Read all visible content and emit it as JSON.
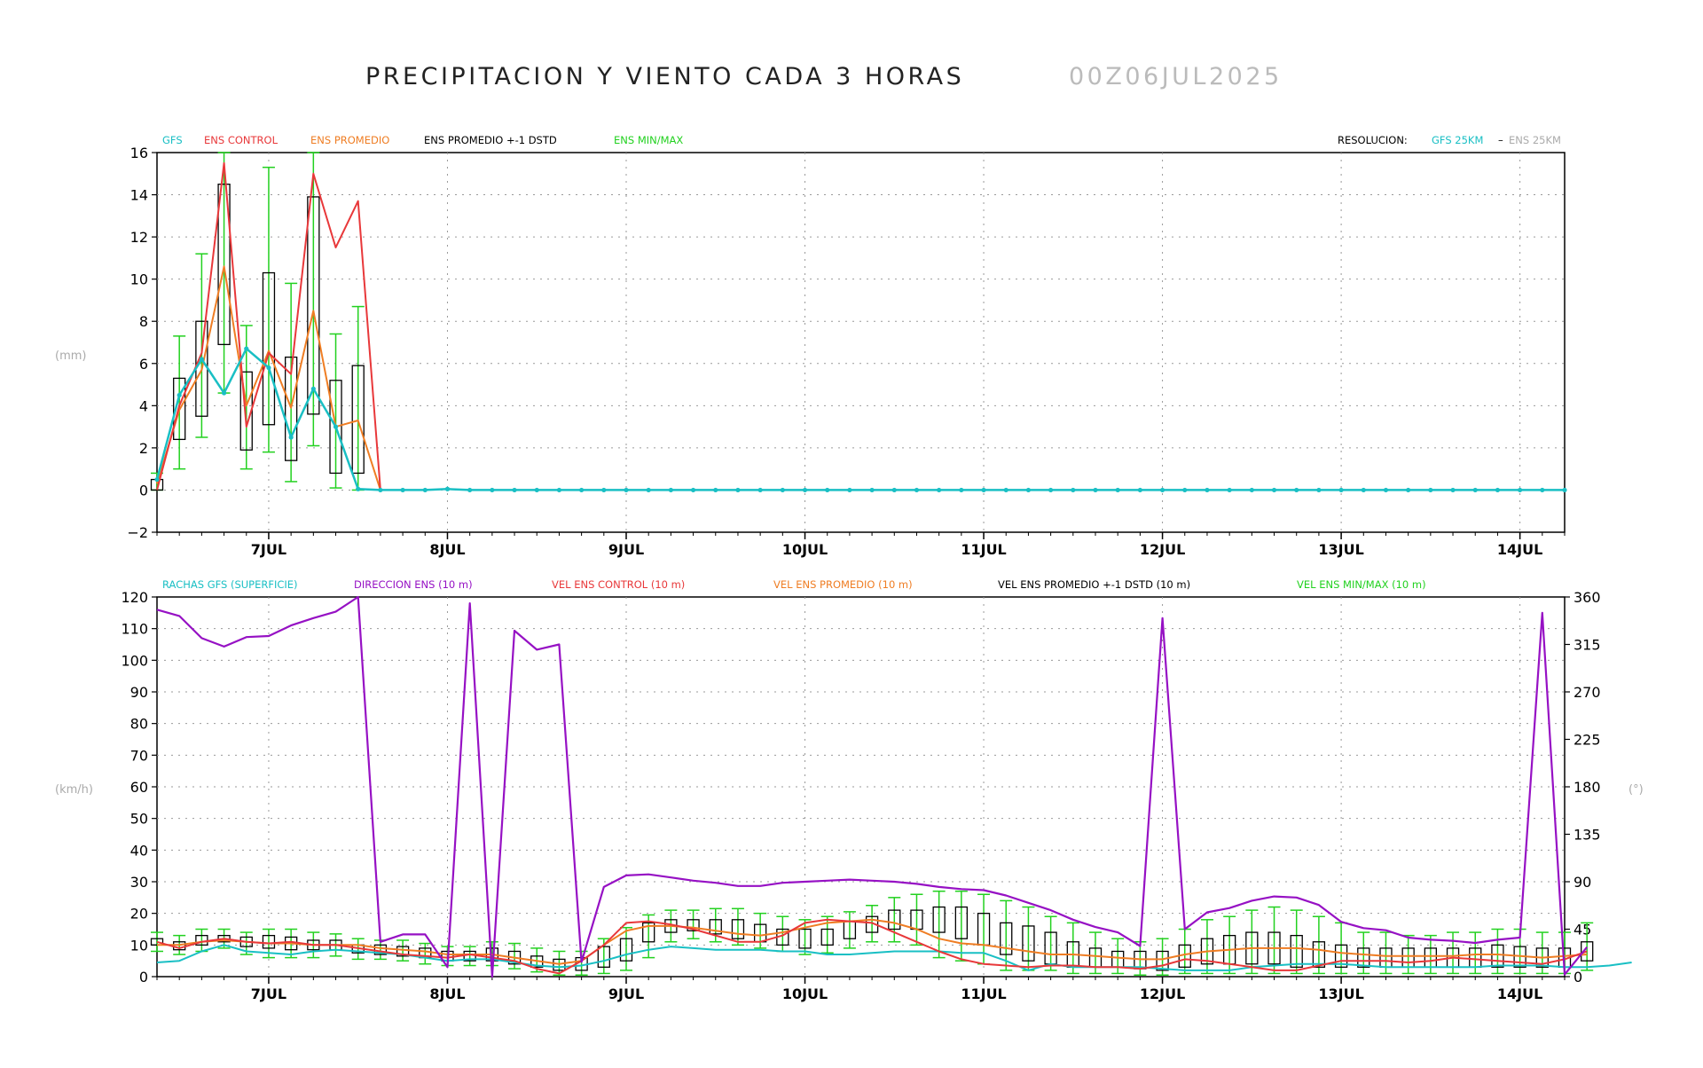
{
  "header": {
    "title": "PRECIPITACION Y VIENTO CADA 3 HORAS",
    "run": "00Z06JUL2025"
  },
  "colors": {
    "gfs": "#19bfc4",
    "control": "#e8383a",
    "promedio": "#ef7d23",
    "std": "#000000",
    "minmax": "#22d11f",
    "direction": "#9611c4",
    "grey": "#aaaaaa",
    "grid": "#999999"
  },
  "x_labels": [
    "7JUL",
    "8JUL",
    "9JUL",
    "10JUL",
    "11JUL",
    "12JUL",
    "13JUL",
    "14JUL"
  ],
  "chart_data": [
    {
      "type": "line",
      "title": "PRECIPITACION Y VIENTO CADA 3 HORAS",
      "ylabel": "(mm)",
      "ylim": [
        -2,
        16
      ],
      "yticks": [
        -2,
        0,
        2,
        4,
        6,
        8,
        10,
        12,
        14,
        16
      ],
      "x_labels": [
        "7JUL",
        "8JUL",
        "9JUL",
        "10JUL",
        "11JUL",
        "12JUL",
        "13JUL",
        "14JUL"
      ],
      "x_step_hours": 3,
      "legend": {
        "items": [
          "GFS",
          "ENS CONTROL",
          "ENS PROMEDIO",
          "ENS PROMEDIO +-1 DSTD",
          "ENS MIN/MAX"
        ],
        "resolution_label": "RESOLUCION:",
        "resolution_gfs": "GFS 25KM",
        "resolution_sep": "–",
        "resolution_ens": "ENS 25KM"
      },
      "series": [
        {
          "name": "GFS",
          "values": [
            0.5,
            4.5,
            6.2,
            4.6,
            6.7,
            5.8,
            2.5,
            4.8,
            3.0,
            0.05,
            0,
            0,
            0,
            0.05
          ]
        },
        {
          "name": "ENS CONTROL",
          "values": [
            0,
            4.0,
            6.5,
            15.5,
            3.0,
            6.5,
            5.5,
            15.0,
            11.5,
            13.7,
            0
          ]
        },
        {
          "name": "ENS PROMEDIO",
          "values": [
            0.3,
            3.8,
            5.7,
            10.6,
            4.0,
            6.6,
            3.9,
            8.5,
            3.0,
            3.3,
            0
          ]
        }
      ],
      "boxes": [
        {
          "low": 0,
          "high": 0.5,
          "min": 0,
          "max": 0.8
        },
        {
          "low": 2.4,
          "high": 5.3,
          "min": 1.0,
          "max": 7.3
        },
        {
          "low": 3.5,
          "high": 8.0,
          "min": 2.5,
          "max": 11.2
        },
        {
          "low": 6.9,
          "high": 14.5,
          "min": 4.6,
          "max": 16.0
        },
        {
          "low": 1.9,
          "high": 5.6,
          "min": 1.0,
          "max": 7.8
        },
        {
          "low": 3.1,
          "high": 10.3,
          "min": 1.8,
          "max": 15.3
        },
        {
          "low": 1.4,
          "high": 6.3,
          "min": 0.4,
          "max": 9.8
        },
        {
          "low": 3.6,
          "high": 13.9,
          "min": 2.1,
          "max": 16.0
        },
        {
          "low": 0.8,
          "high": 5.2,
          "min": 0.1,
          "max": 7.4
        },
        {
          "low": 0.8,
          "high": 5.9,
          "min": 0.0,
          "max": 8.7
        }
      ]
    },
    {
      "type": "line",
      "ylabel": "(km/h)",
      "y2label": "(°)",
      "ylim": [
        0,
        120
      ],
      "y2lim": [
        0,
        360
      ],
      "yticks": [
        0,
        10,
        20,
        30,
        40,
        50,
        60,
        70,
        80,
        90,
        100,
        110,
        120
      ],
      "y2ticks": [
        0,
        45,
        90,
        135,
        180,
        225,
        270,
        315,
        360
      ],
      "x_labels": [
        "7JUL",
        "8JUL",
        "9JUL",
        "10JUL",
        "11JUL",
        "12JUL",
        "13JUL",
        "14JUL"
      ],
      "x_step_hours": 3,
      "legend": {
        "items": [
          "RACHAS GFS (SUPERFICIE)",
          "DIRECCION ENS (10 m)",
          "VEL ENS CONTROL (10 m)",
          "VEL ENS PROMEDIO (10 m)",
          "VEL ENS PROMEDIO +-1 DSTD (10 m)",
          "VEL ENS MIN/MAX (10 m)"
        ]
      },
      "series": [
        {
          "name": "RACHAS GFS (SUPERFICIE)",
          "values": [
            4.5,
            5,
            8,
            10,
            8,
            7.5,
            7,
            8,
            8.5,
            8,
            7.5,
            7,
            6,
            5,
            5.5,
            5.5,
            4.5,
            3.5,
            3,
            3.5,
            5,
            7,
            8.5,
            9.5,
            9,
            8.5,
            8.5,
            8.5,
            8,
            8,
            7,
            7,
            7.5,
            8,
            8,
            8,
            7.5,
            7.5,
            5,
            2,
            4,
            3,
            3,
            3,
            3,
            2.5,
            2,
            2,
            2,
            3,
            3.5,
            4,
            4,
            4,
            3.5,
            3,
            3,
            3,
            3,
            3,
            3.5,
            3.5,
            3.5,
            3,
            3,
            3.5,
            4.5
          ]
        },
        {
          "name": "DIRECCION ENS (10 m)",
          "values": [
            348,
            342,
            321,
            313,
            322,
            323,
            333,
            340,
            346,
            360,
            33,
            40,
            40,
            9,
            354,
            0,
            328,
            310,
            315,
            14,
            85,
            96,
            97,
            94,
            91,
            89,
            86,
            86,
            89,
            90,
            91,
            92,
            91,
            90,
            88,
            85,
            83,
            82,
            77,
            70,
            63,
            54,
            47,
            42,
            29,
            340,
            45,
            61,
            65,
            72,
            76,
            75,
            68,
            52,
            46,
            44,
            37,
            35,
            34,
            32,
            35,
            37,
            345,
            2,
            28
          ]
        },
        {
          "name": "VEL ENS CONTROL (10 m)",
          "values": [
            11,
            9,
            11,
            12,
            11,
            10.5,
            11,
            10,
            10,
            9,
            8,
            7,
            6.5,
            6,
            7,
            6,
            5,
            2.5,
            1,
            5,
            10,
            17,
            17.5,
            16.5,
            15,
            13,
            11,
            11,
            13,
            17,
            18,
            17.5,
            17,
            14,
            11,
            8,
            5.5,
            4,
            3.5,
            3,
            3.5,
            3.5,
            3,
            3,
            2.5,
            3.5,
            5.5,
            5,
            4,
            3,
            2,
            2,
            3.5,
            5,
            5,
            5,
            4.5,
            5,
            6,
            5.5,
            5,
            4.5,
            4,
            5.5,
            8
          ]
        },
        {
          "name": "VEL ENS PROMEDIO (10 m)",
          "values": [
            10,
            10,
            11,
            11.5,
            11,
            10.5,
            10.5,
            10,
            10,
            10,
            9,
            8.5,
            8,
            7,
            7,
            7,
            6,
            5,
            4,
            5,
            10,
            14.5,
            16,
            16,
            15.5,
            14.5,
            13.5,
            13,
            14,
            15.5,
            17,
            17.5,
            18,
            17,
            15,
            12,
            10.5,
            10,
            9,
            8,
            7,
            7,
            6.5,
            6,
            5.5,
            5.5,
            7,
            8,
            8.5,
            9,
            9,
            9,
            8.5,
            7.5,
            7,
            6.5,
            6.5,
            6.5,
            6.5,
            7,
            7,
            6.5,
            6,
            6.5,
            7
          ]
        }
      ],
      "boxes": [
        {
          "low": 10,
          "high": 12,
          "min": 8,
          "max": 14
        },
        {
          "low": 8.5,
          "high": 11,
          "min": 7,
          "max": 13
        },
        {
          "low": 10,
          "high": 13,
          "min": 8,
          "max": 15
        },
        {
          "low": 11,
          "high": 13,
          "min": 9,
          "max": 15
        },
        {
          "low": 9.5,
          "high": 12.5,
          "min": 7,
          "max": 14
        },
        {
          "low": 9,
          "high": 13,
          "min": 6,
          "max": 15
        },
        {
          "low": 8.5,
          "high": 12.5,
          "min": 6,
          "max": 15
        },
        {
          "low": 8.5,
          "high": 11.5,
          "min": 6,
          "max": 14
        },
        {
          "low": 8.5,
          "high": 11.5,
          "min": 6.5,
          "max": 13.5
        },
        {
          "low": 7.5,
          "high": 10,
          "min": 5.5,
          "max": 12
        },
        {
          "low": 7,
          "high": 10,
          "min": 5.5,
          "max": 11.5
        },
        {
          "low": 6.5,
          "high": 9.5,
          "min": 5,
          "max": 11.5
        },
        {
          "low": 6,
          "high": 9,
          "min": 4,
          "max": 10.5
        },
        {
          "low": 5,
          "high": 8,
          "min": 3.5,
          "max": 9.5
        },
        {
          "low": 5,
          "high": 8,
          "min": 3.5,
          "max": 9.5
        },
        {
          "low": 5,
          "high": 9,
          "min": 3.5,
          "max": 11
        },
        {
          "low": 4,
          "high": 8,
          "min": 2.5,
          "max": 10.5
        },
        {
          "low": 3,
          "high": 6.5,
          "min": 1.5,
          "max": 9
        },
        {
          "low": 2,
          "high": 5.5,
          "min": 0.5,
          "max": 8
        },
        {
          "low": 2,
          "high": 6,
          "min": 0.5,
          "max": 8
        },
        {
          "low": 3,
          "high": 9.5,
          "min": 1,
          "max": 12
        },
        {
          "low": 5,
          "high": 12,
          "min": 2,
          "max": 15.5
        },
        {
          "low": 11,
          "high": 17,
          "min": 6,
          "max": 19.5
        },
        {
          "low": 14,
          "high": 18,
          "min": 11,
          "max": 21
        },
        {
          "low": 14.5,
          "high": 18,
          "min": 12,
          "max": 21
        },
        {
          "low": 13.5,
          "high": 18,
          "min": 11,
          "max": 21.5
        },
        {
          "low": 12,
          "high": 18,
          "min": 10,
          "max": 21.5
        },
        {
          "low": 11,
          "high": 16.5,
          "min": 9,
          "max": 20
        },
        {
          "low": 10,
          "high": 15,
          "min": 8,
          "max": 19
        },
        {
          "low": 9,
          "high": 15,
          "min": 7,
          "max": 18
        },
        {
          "low": 10,
          "high": 15,
          "min": 7.5,
          "max": 19
        },
        {
          "low": 12,
          "high": 17.5,
          "min": 9,
          "max": 20.5
        },
        {
          "low": 14,
          "high": 19,
          "min": 11,
          "max": 22.5
        },
        {
          "low": 15,
          "high": 21,
          "min": 11,
          "max": 25
        },
        {
          "low": 15,
          "high": 21,
          "min": 10,
          "max": 26
        },
        {
          "low": 14,
          "high": 22,
          "min": 6,
          "max": 27
        },
        {
          "low": 12,
          "high": 22,
          "min": 5,
          "max": 27
        },
        {
          "low": 10,
          "high": 20,
          "min": 4,
          "max": 26
        },
        {
          "low": 7,
          "high": 17,
          "min": 2,
          "max": 24
        },
        {
          "low": 5,
          "high": 16,
          "min": 2,
          "max": 22
        },
        {
          "low": 4,
          "high": 14,
          "min": 2,
          "max": 19
        },
        {
          "low": 3,
          "high": 11,
          "min": 1,
          "max": 17
        },
        {
          "low": 3,
          "high": 9,
          "min": 1,
          "max": 14
        },
        {
          "low": 3,
          "high": 8,
          "min": 1,
          "max": 12
        },
        {
          "low": 2.5,
          "high": 8,
          "min": 0.5,
          "max": 11
        },
        {
          "low": 2,
          "high": 8,
          "min": 0.5,
          "max": 12
        },
        {
          "low": 3,
          "high": 10,
          "min": 1,
          "max": 15
        },
        {
          "low": 4,
          "high": 12,
          "min": 1,
          "max": 18
        },
        {
          "low": 4,
          "high": 13,
          "min": 1,
          "max": 19
        },
        {
          "low": 4,
          "high": 14,
          "min": 1,
          "max": 21
        },
        {
          "low": 4,
          "high": 14,
          "min": 1,
          "max": 22
        },
        {
          "low": 3,
          "high": 13,
          "min": 1,
          "max": 21
        },
        {
          "low": 3,
          "high": 11,
          "min": 1,
          "max": 19
        },
        {
          "low": 3,
          "high": 10,
          "min": 1,
          "max": 17
        },
        {
          "low": 3,
          "high": 9,
          "min": 1,
          "max": 14
        },
        {
          "low": 3,
          "high": 9,
          "min": 1,
          "max": 14
        },
        {
          "low": 3,
          "high": 9,
          "min": 1,
          "max": 13
        },
        {
          "low": 3,
          "high": 9,
          "min": 1,
          "max": 13
        },
        {
          "low": 3,
          "high": 9,
          "min": 1,
          "max": 14
        },
        {
          "low": 3,
          "high": 9,
          "min": 1,
          "max": 14
        },
        {
          "low": 3,
          "high": 10,
          "min": 1,
          "max": 15
        },
        {
          "low": 3,
          "high": 9.5,
          "min": 1,
          "max": 15
        },
        {
          "low": 3,
          "high": 9,
          "min": 1,
          "max": 14
        },
        {
          "low": 3,
          "high": 9,
          "min": 1,
          "max": 14
        },
        {
          "low": 5,
          "high": 11,
          "min": 2,
          "max": 17
        }
      ]
    }
  ]
}
